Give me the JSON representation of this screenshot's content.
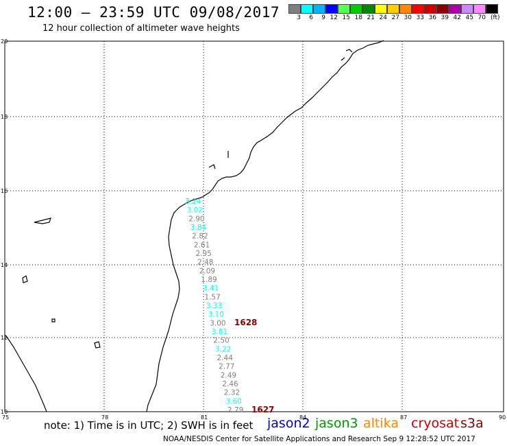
{
  "header": {
    "title": "12:00 – 23:59 UTC 09/08/2017",
    "subtitle": "12 hour collection of altimeter wave heights"
  },
  "legend": {
    "unit": "(ft)",
    "items": [
      {
        "label": "3",
        "color": "#7f7f7f"
      },
      {
        "label": "6",
        "color": "#00ffff"
      },
      {
        "label": "9",
        "color": "#00b4ff"
      },
      {
        "label": "12",
        "color": "#0000ff"
      },
      {
        "label": "15",
        "color": "#55ff55"
      },
      {
        "label": "18",
        "color": "#00cc00"
      },
      {
        "label": "21",
        "color": "#008800"
      },
      {
        "label": "24",
        "color": "#ffff00"
      },
      {
        "label": "27",
        "color": "#ffcc00"
      },
      {
        "label": "30",
        "color": "#ff8800"
      },
      {
        "label": "33",
        "color": "#ff0000"
      },
      {
        "label": "36",
        "color": "#cc0000"
      },
      {
        "label": "39",
        "color": "#880000"
      },
      {
        "label": "42",
        "color": "#aa00aa"
      },
      {
        "label": "45",
        "color": "#cc88ff"
      },
      {
        "label": "70",
        "color": "#ff88ff"
      },
      {
        "label": "",
        "color": "#000000"
      }
    ]
  },
  "map": {
    "lon_ticks": [
      "75",
      "78",
      "81",
      "84",
      "87",
      "90"
    ],
    "lat_ticks": [
      "20",
      "18",
      "16",
      "14",
      "12",
      "10"
    ],
    "wave_heights": [
      {
        "value": "3.24",
        "color": "#00ffff"
      },
      {
        "value": "3.02",
        "color": "#00ffff"
      },
      {
        "value": "2.90",
        "color": "#7f7f7f"
      },
      {
        "value": "3.84",
        "color": "#00ffff"
      },
      {
        "value": "2.82",
        "color": "#7f7f7f"
      },
      {
        "value": "2.61",
        "color": "#7f7f7f"
      },
      {
        "value": "2.95",
        "color": "#7f7f7f"
      },
      {
        "value": "2.48",
        "color": "#7f7f7f"
      },
      {
        "value": "2.09",
        "color": "#7f7f7f"
      },
      {
        "value": "1.89",
        "color": "#7f7f7f"
      },
      {
        "value": "3.41",
        "color": "#00ffff"
      },
      {
        "value": "1.57",
        "color": "#7f7f7f"
      },
      {
        "value": "3.33",
        "color": "#00ffff"
      },
      {
        "value": "3.10",
        "color": "#00ffff"
      },
      {
        "value": "3.00",
        "color": "#7f7f7f"
      },
      {
        "value": "3.81",
        "color": "#00ffff"
      },
      {
        "value": "2.50",
        "color": "#7f7f7f"
      },
      {
        "value": "3.22",
        "color": "#00ffff"
      },
      {
        "value": "2.44",
        "color": "#7f7f7f"
      },
      {
        "value": "2.77",
        "color": "#7f7f7f"
      },
      {
        "value": "2.49",
        "color": "#7f7f7f"
      },
      {
        "value": "2.46",
        "color": "#7f7f7f"
      },
      {
        "value": "2.32",
        "color": "#7f7f7f"
      },
      {
        "value": "3.60",
        "color": "#00ffff"
      },
      {
        "value": "2.79",
        "color": "#7f7f7f"
      }
    ],
    "time_labels": [
      {
        "value": "1628",
        "color": "#880000"
      },
      {
        "value": "1627",
        "color": "#880000"
      }
    ]
  },
  "footer": {
    "note": "note:  1) Time is in UTC;  2) SWH is in feet",
    "satellites": [
      {
        "name": "jason2",
        "color": "#0000cc"
      },
      {
        "name": "jason3",
        "color": "#009900"
      },
      {
        "name": "altika",
        "color": "#ff8800"
      },
      {
        "name": "cryosat",
        "color": "#cc0000"
      },
      {
        "name": "s3a",
        "color": "#880000"
      }
    ],
    "credit": "NOAA/NESDIS Center for Satellite Applications and Research    Sep  9 12:28:52 UTC 2017"
  }
}
